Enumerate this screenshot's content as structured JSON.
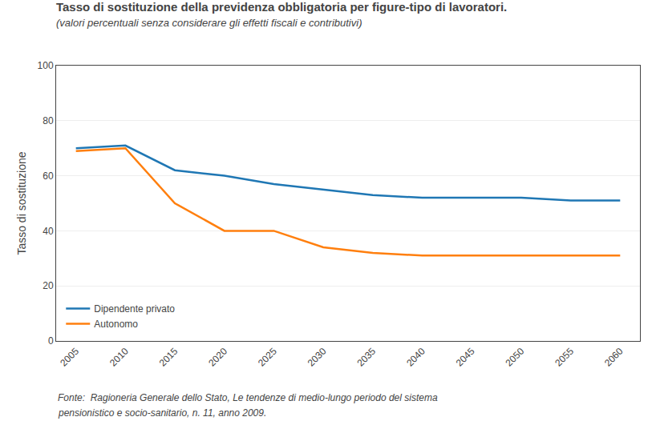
{
  "chart_data": {
    "type": "line",
    "title": "Tasso di sostituzione della previdenza obbligatoria per figure-tipo di lavoratori.",
    "subtitle": "(valori percentuali senza considerare gli effetti fiscali e contributivi)",
    "ylabel": "Tasso di sostituzione",
    "annotations": [
      "Fonte:  Ragioneria Generale dello Stato, Le tendenze di medio-lungo periodo del sistema",
      "pensionistico e socio-sanitario, n. 11, anno 2009."
    ],
    "x": [
      2005,
      2010,
      2015,
      2020,
      2025,
      2030,
      2035,
      2040,
      2045,
      2050,
      2055,
      2060
    ],
    "series": [
      {
        "name": "Dipendente privato",
        "values": [
          70,
          71,
          62,
          60,
          57,
          55,
          53,
          52,
          52,
          52,
          51,
          51
        ]
      },
      {
        "name": "Autonomo",
        "values": [
          69,
          70,
          50,
          40,
          40,
          34,
          32,
          31,
          31,
          31,
          31,
          31
        ]
      }
    ],
    "xlim": [
      2003,
      2062
    ],
    "xticks": [
      2005,
      2010,
      2015,
      2020,
      2025,
      2030,
      2035,
      2040,
      2045,
      2050,
      2055,
      2060
    ],
    "ylim": [
      0,
      100
    ],
    "yticks": [
      0,
      20,
      40,
      60,
      80,
      100
    ],
    "grid": "y",
    "legend": "lower left"
  }
}
